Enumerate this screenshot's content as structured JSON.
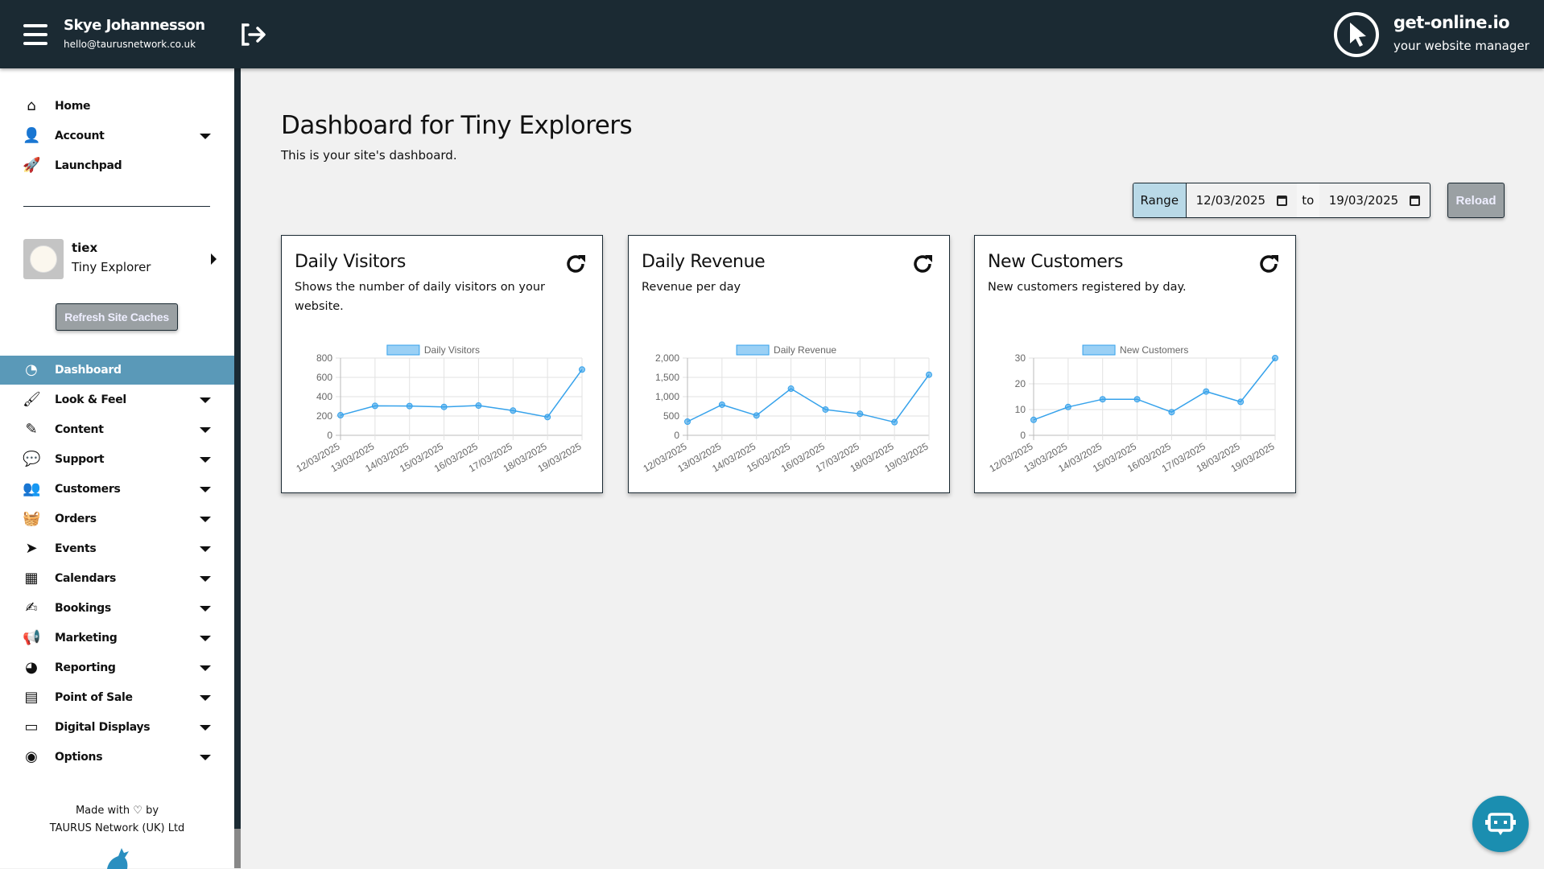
{
  "header": {
    "user_name": "Skye Johannesson",
    "user_email": "hello@taurusnetwork.co.uk",
    "brand": "get-online.io",
    "tagline": "your website manager",
    "bg_color": "#1b2a33"
  },
  "sidebar": {
    "top_items": [
      {
        "label": "Home",
        "icon": "home-icon"
      },
      {
        "label": "Account",
        "icon": "user-icon",
        "expandable": true
      },
      {
        "label": "Launchpad",
        "icon": "rocket-icon"
      }
    ],
    "site": {
      "code": "tiex",
      "name": "Tiny Explorer"
    },
    "refresh_label": "Refresh Site Caches",
    "items": [
      {
        "label": "Dashboard",
        "icon": "dashboard-icon",
        "active": true
      },
      {
        "label": "Look & Feel",
        "icon": "paint-roller-icon",
        "expandable": true
      },
      {
        "label": "Content",
        "icon": "pencil-icon",
        "expandable": true
      },
      {
        "label": "Support",
        "icon": "comments-icon",
        "expandable": true
      },
      {
        "label": "Customers",
        "icon": "users-icon",
        "expandable": true
      },
      {
        "label": "Orders",
        "icon": "basket-icon",
        "expandable": true
      },
      {
        "label": "Events",
        "icon": "location-arrow-icon",
        "expandable": true
      },
      {
        "label": "Calendars",
        "icon": "calendar-icon",
        "expandable": true
      },
      {
        "label": "Bookings",
        "icon": "file-signature-icon",
        "expandable": true
      },
      {
        "label": "Marketing",
        "icon": "bullhorn-icon",
        "expandable": true
      },
      {
        "label": "Reporting",
        "icon": "pie-chart-icon",
        "expandable": true
      },
      {
        "label": "Point of Sale",
        "icon": "cash-register-icon",
        "expandable": true
      },
      {
        "label": "Digital Displays",
        "icon": "monitor-icon",
        "expandable": true
      },
      {
        "label": "Options",
        "icon": "toggle-icon",
        "expandable": true
      }
    ],
    "active_color": "#5a99b8",
    "footer": {
      "made_with": "Made with",
      "by": "by",
      "company": "TAURUS Network (UK) Ltd"
    }
  },
  "main": {
    "title": "Dashboard for Tiny Explorers",
    "subtitle": "This is your site's dashboard.",
    "range": {
      "label": "Range",
      "from": "12/03/2025",
      "to_label": "to",
      "to": "19/03/2025"
    },
    "reload_label": "Reload"
  },
  "cards": [
    {
      "title": "Daily Visitors",
      "description": "Shows the number of daily visitors on your website."
    },
    {
      "title": "Daily Revenue",
      "description": "Revenue per day"
    },
    {
      "title": "New Customers",
      "description": "New customers registered by day."
    }
  ],
  "chart_data": [
    {
      "type": "line",
      "legend": "Daily Visitors",
      "categories": [
        "12/03/2025",
        "13/03/2025",
        "14/03/2025",
        "15/03/2025",
        "16/03/2025",
        "17/03/2025",
        "18/03/2025",
        "19/03/2025"
      ],
      "values": [
        208,
        305,
        303,
        294,
        308,
        256,
        189,
        681
      ],
      "ylim": [
        0,
        800
      ],
      "yticks": [
        "0",
        "200",
        "400",
        "600",
        "800"
      ],
      "grid": true,
      "legend_position": "top",
      "color": "#36a2eb"
    },
    {
      "type": "line",
      "legend": "Daily Revenue",
      "categories": [
        "12/03/2025",
        "13/03/2025",
        "14/03/2025",
        "15/03/2025",
        "16/03/2025",
        "17/03/2025",
        "18/03/2025",
        "19/03/2025"
      ],
      "values": [
        354,
        792,
        514,
        1208,
        667,
        556,
        340,
        1569
      ],
      "ylim": [
        0,
        2000
      ],
      "yticks": [
        "0",
        "500",
        "1,000",
        "1,500",
        "2,000"
      ],
      "grid": true,
      "legend_position": "top",
      "color": "#36a2eb"
    },
    {
      "type": "line",
      "legend": "New Customers",
      "categories": [
        "12/03/2025",
        "13/03/2025",
        "14/03/2025",
        "15/03/2025",
        "16/03/2025",
        "17/03/2025",
        "18/03/2025",
        "19/03/2025"
      ],
      "values": [
        6,
        11,
        14,
        14,
        9,
        17,
        13,
        30
      ],
      "ylim": [
        0,
        30
      ],
      "yticks": [
        "0",
        "10",
        "20",
        "30"
      ],
      "grid": true,
      "legend_position": "top",
      "color": "#36a2eb"
    }
  ]
}
